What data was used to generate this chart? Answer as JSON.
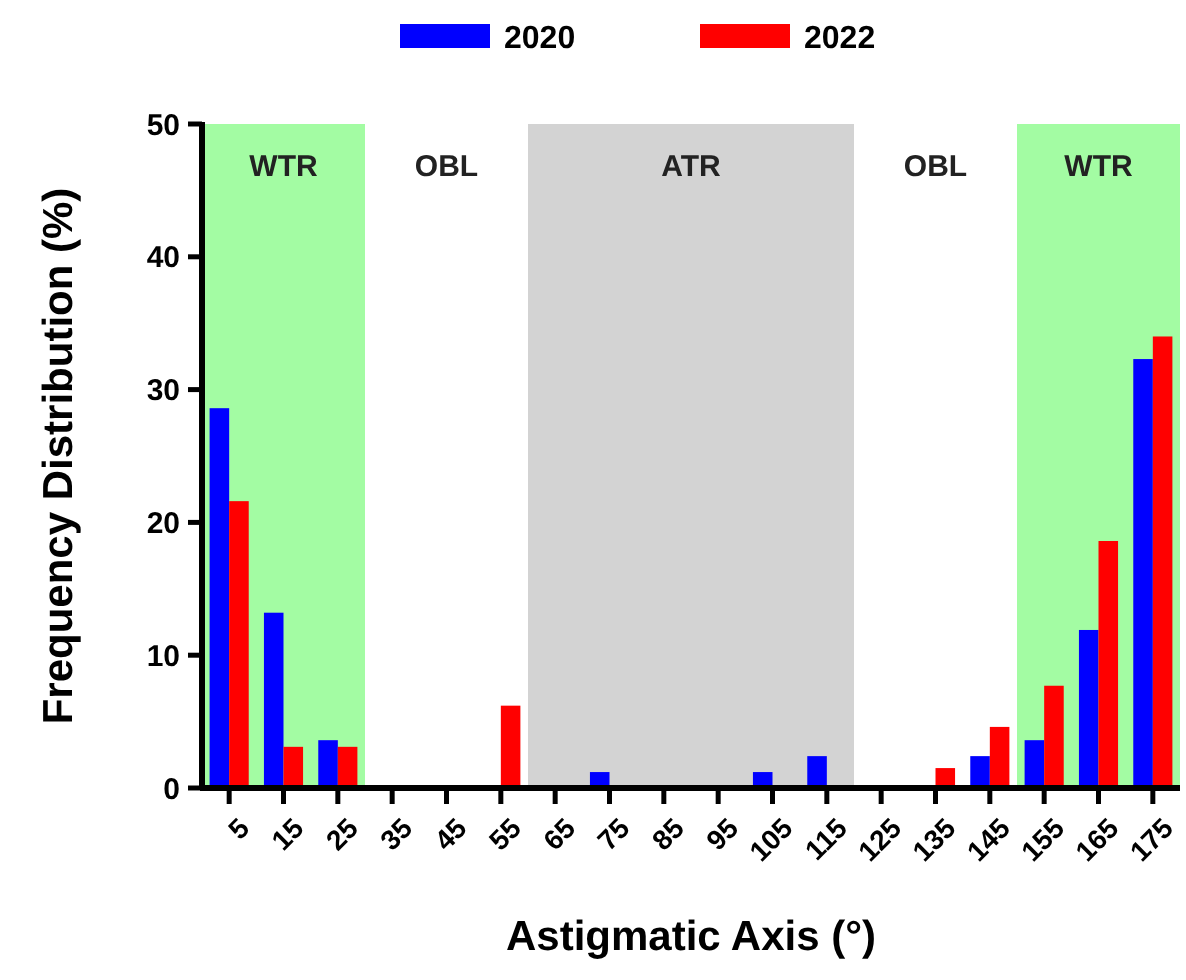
{
  "chart_data": {
    "type": "bar",
    "xlabel": "Astigmatic Axis  (°)",
    "ylabel": "Frequency Distribution (%)",
    "x": [
      5,
      15,
      25,
      35,
      45,
      55,
      65,
      75,
      85,
      95,
      105,
      115,
      125,
      135,
      145,
      155,
      165,
      175
    ],
    "annotations": [
      "OBL",
      "OBL"
    ],
    "xlim": [
      0,
      180
    ],
    "xticks": [
      5,
      15,
      25,
      35,
      45,
      55,
      65,
      75,
      85,
      95,
      105,
      115,
      125,
      135,
      145,
      155,
      165,
      175
    ],
    "ylim": [
      0,
      50
    ],
    "yticks": [
      0,
      10,
      20,
      30,
      40,
      50
    ],
    "grid": false,
    "legend": "top",
    "series": [
      {
        "name": "2020",
        "color": "#0000ff",
        "values": [
          28.6,
          13.2,
          3.6,
          0,
          0,
          0,
          0,
          1.2,
          0,
          0,
          1.2,
          2.4,
          0,
          0,
          2.4,
          3.6,
          11.9,
          32.3
        ]
      },
      {
        "name": "2022",
        "color": "#ff0000",
        "values": [
          21.6,
          3.1,
          3.1,
          0,
          0,
          6.2,
          0,
          0,
          0,
          0,
          0,
          0,
          0,
          1.5,
          4.6,
          7.7,
          18.6,
          34.0
        ]
      }
    ],
    "bands": [
      {
        "axis": "x",
        "from": 0,
        "to": 30,
        "label": "WTR",
        "color": "#a3fca3"
      },
      {
        "axis": "x",
        "from": 60,
        "to": 120,
        "label": "ATR",
        "color": "#d3d3d3"
      },
      {
        "axis": "x",
        "from": 150,
        "to": 180,
        "label": "WTR",
        "color": "#a3fca3"
      }
    ]
  }
}
